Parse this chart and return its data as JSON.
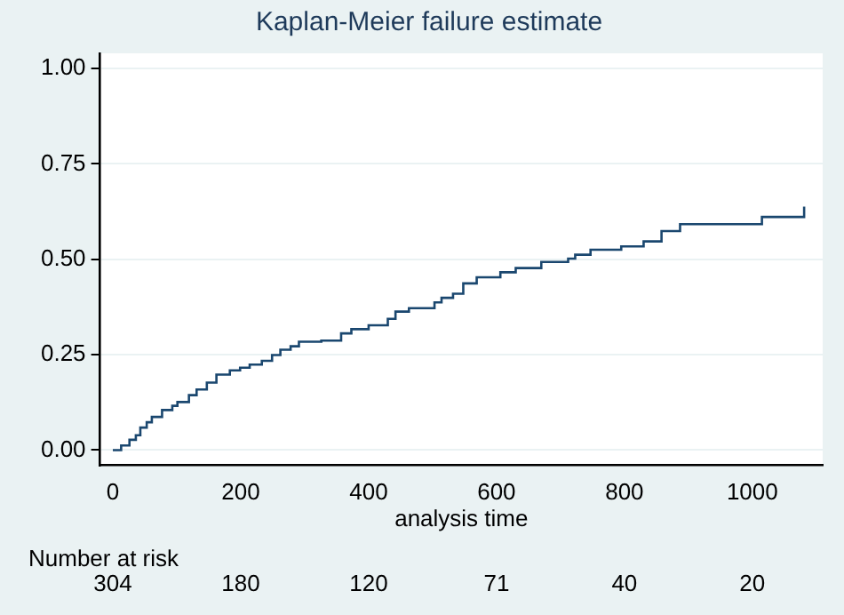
{
  "chart_data": {
    "type": "step",
    "title": "Kaplan-Meier failure estimate",
    "xlabel": "analysis time",
    "x": [
      0,
      13,
      26,
      36,
      43,
      53,
      61,
      77,
      93,
      101,
      119,
      131,
      147,
      162,
      183,
      199,
      214,
      233,
      249,
      262,
      278,
      291,
      326,
      357,
      373,
      400,
      430,
      442,
      463,
      503,
      514,
      532,
      548,
      569,
      606,
      630,
      670,
      712,
      723,
      747,
      795,
      830,
      858,
      887,
      1015,
      1081
    ],
    "series": [
      {
        "color": "#1a476f",
        "values": [
          0,
          0.012,
          0.027,
          0.039,
          0.059,
          0.073,
          0.087,
          0.105,
          0.116,
          0.126,
          0.144,
          0.159,
          0.177,
          0.198,
          0.209,
          0.216,
          0.224,
          0.234,
          0.249,
          0.263,
          0.272,
          0.284,
          0.287,
          0.306,
          0.317,
          0.327,
          0.344,
          0.363,
          0.372,
          0.387,
          0.399,
          0.41,
          0.437,
          0.453,
          0.466,
          0.477,
          0.493,
          0.502,
          0.512,
          0.525,
          0.534,
          0.547,
          0.574,
          0.592,
          0.611,
          0.638
        ]
      }
    ],
    "xlim": [
      -20,
      1110
    ],
    "xticks": [
      0,
      200,
      400,
      600,
      800,
      1000
    ],
    "ylim": [
      -0.04,
      1.04
    ],
    "yticks": [
      {
        "value": 0,
        "label": "0.00"
      },
      {
        "value": 0.25,
        "label": "0.25"
      },
      {
        "value": 0.5,
        "label": "0.50"
      },
      {
        "value": 0.75,
        "label": "0.75"
      },
      {
        "value": 1,
        "label": "1.00"
      }
    ],
    "grid": "y",
    "legend": false,
    "annotations": [
      "Number at risk",
      "304",
      "180",
      "120",
      "71",
      "40",
      "20"
    ]
  }
}
